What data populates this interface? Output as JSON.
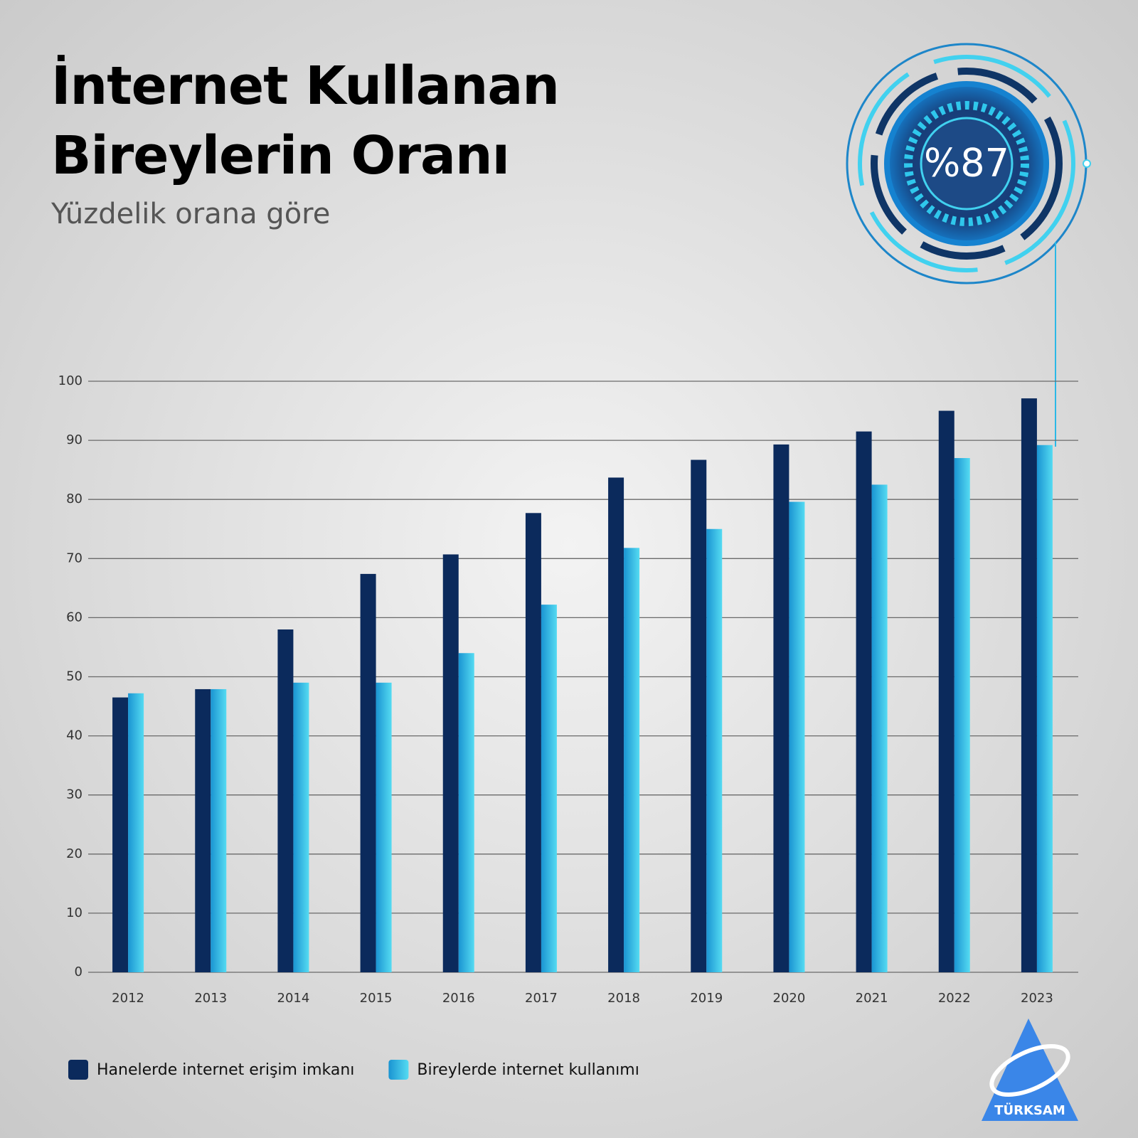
{
  "chart_data": {
    "type": "bar",
    "title": "İnternet Kullanan Bireylerin Oranı",
    "subtitle": "Yüzdelik orana göre",
    "badge_text": "%87",
    "logo_text": "TÜRKSAM",
    "categories": [
      "2012",
      "2013",
      "2014",
      "2015",
      "2016",
      "2017",
      "2018",
      "2019",
      "2020",
      "2021",
      "2022",
      "2023"
    ],
    "series": [
      {
        "name": "Hanelerde internet erişim imkanı",
        "color": "#0b2a5c",
        "values": [
          46.5,
          47.9,
          58.0,
          67.4,
          70.7,
          77.7,
          83.7,
          86.7,
          89.3,
          91.5,
          95.0,
          97.1
        ]
      },
      {
        "name": "Bireylerde internet kullanımı",
        "color": "#2bb8e6",
        "values": [
          47.2,
          47.9,
          49.0,
          49.0,
          54.0,
          62.2,
          71.8,
          75.0,
          79.6,
          82.5,
          87.0,
          89.2
        ]
      }
    ],
    "ylim": [
      0,
      100
    ],
    "yticks": [
      0,
      10,
      20,
      30,
      40,
      50,
      60,
      70,
      80,
      90,
      100
    ],
    "grid": true
  }
}
